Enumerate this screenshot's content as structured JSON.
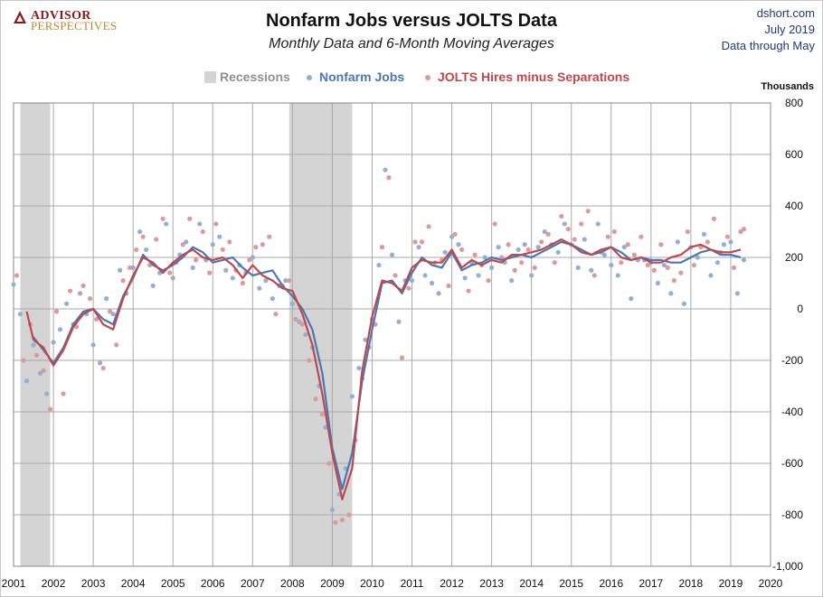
{
  "header": {
    "logo_top": "ADVISOR",
    "logo_bottom": "PERSPECTIVES",
    "title": "Nonfarm Jobs versus JOLTS Data",
    "subtitle": "Monthly Data and 6-Month Moving Averages",
    "source_site": "dshort.com",
    "source_date": "July 2019",
    "source_note": "Data through May"
  },
  "colors": {
    "recession": "#d4d4d4",
    "nonfarm": "#4a78b5",
    "jolts": "#c0474b",
    "grid": "#a9a9a9"
  },
  "chart_data": {
    "type": "line",
    "title": "Nonfarm Jobs versus JOLTS Data",
    "subtitle": "Monthly Data and 6-Month Moving Averages",
    "ylabel": "Thousands",
    "xlim": [
      2001,
      2020
    ],
    "ylim": [
      -1000,
      800
    ],
    "x_ticks": [
      "2001",
      "2002",
      "2003",
      "2004",
      "2005",
      "2006",
      "2007",
      "2008",
      "2009",
      "2010",
      "2011",
      "2012",
      "2013",
      "2014",
      "2015",
      "2016",
      "2017",
      "2018",
      "2019",
      "2020"
    ],
    "y_ticks": [
      "800",
      "600",
      "400",
      "200",
      "0",
      "-200",
      "-400",
      "-600",
      "-800",
      "-1,000"
    ],
    "y_tick_values": [
      800,
      600,
      400,
      200,
      0,
      -200,
      -400,
      -600,
      -800,
      -1000
    ],
    "legend": {
      "position": "top-center",
      "recessions": "Recessions",
      "nonfarm": "Nonfarm Jobs",
      "jolts": "JOLTS Hires minus Separations"
    },
    "recessions": [
      [
        2001.17,
        2001.92
      ],
      [
        2007.92,
        2009.5
      ]
    ],
    "series": [
      {
        "name": "Nonfarm Jobs",
        "style": "6-month moving average",
        "x": [
          2001.5,
          2001.75,
          2002.0,
          2002.25,
          2002.5,
          2002.75,
          2003.0,
          2003.25,
          2003.5,
          2003.75,
          2004.0,
          2004.25,
          2004.5,
          2004.75,
          2005.0,
          2005.25,
          2005.5,
          2005.75,
          2006.0,
          2006.25,
          2006.5,
          2006.75,
          2007.0,
          2007.25,
          2007.5,
          2007.75,
          2008.0,
          2008.25,
          2008.5,
          2008.75,
          2009.0,
          2009.25,
          2009.5,
          2009.75,
          2010.0,
          2010.25,
          2010.5,
          2010.75,
          2011.0,
          2011.25,
          2011.5,
          2011.75,
          2012.0,
          2012.25,
          2012.5,
          2012.75,
          2013.0,
          2013.25,
          2013.5,
          2013.75,
          2014.0,
          2014.25,
          2014.5,
          2014.75,
          2015.0,
          2015.25,
          2015.5,
          2015.75,
          2016.0,
          2016.25,
          2016.5,
          2016.75,
          2017.0,
          2017.25,
          2017.5,
          2017.75,
          2018.0,
          2018.25,
          2018.5,
          2018.75,
          2019.0,
          2019.25
        ],
        "values": [
          -110,
          -160,
          -210,
          -150,
          -60,
          -10,
          0,
          -40,
          -60,
          50,
          120,
          210,
          170,
          150,
          170,
          200,
          240,
          220,
          180,
          190,
          200,
          160,
          130,
          140,
          150,
          90,
          50,
          0,
          -80,
          -250,
          -540,
          -700,
          -560,
          -280,
          -80,
          100,
          110,
          60,
          140,
          200,
          170,
          160,
          220,
          150,
          170,
          180,
          200,
          190,
          200,
          210,
          200,
          220,
          240,
          260,
          250,
          230,
          210,
          220,
          240,
          220,
          190,
          200,
          190,
          190,
          180,
          180,
          200,
          220,
          230,
          210,
          210,
          200
        ]
      },
      {
        "name": "JOLTS Hires minus Separations",
        "style": "6-month moving average",
        "x": [
          2001.33,
          2001.5,
          2001.75,
          2002.0,
          2002.25,
          2002.5,
          2002.75,
          2003.0,
          2003.25,
          2003.5,
          2003.75,
          2004.0,
          2004.25,
          2004.5,
          2004.75,
          2005.0,
          2005.25,
          2005.5,
          2005.75,
          2006.0,
          2006.25,
          2006.5,
          2006.75,
          2007.0,
          2007.25,
          2007.5,
          2007.75,
          2008.0,
          2008.25,
          2008.5,
          2008.75,
          2009.0,
          2009.25,
          2009.5,
          2009.75,
          2010.0,
          2010.25,
          2010.5,
          2010.75,
          2011.0,
          2011.25,
          2011.5,
          2011.75,
          2012.0,
          2012.25,
          2012.5,
          2012.75,
          2013.0,
          2013.25,
          2013.5,
          2013.75,
          2014.0,
          2014.25,
          2014.5,
          2014.75,
          2015.0,
          2015.25,
          2015.5,
          2015.75,
          2016.0,
          2016.25,
          2016.5,
          2016.75,
          2017.0,
          2017.25,
          2017.5,
          2017.75,
          2018.0,
          2018.25,
          2018.5,
          2018.75,
          2019.0,
          2019.25
        ],
        "values": [
          -10,
          -120,
          -150,
          -220,
          -160,
          -70,
          -20,
          0,
          -60,
          -80,
          40,
          130,
          200,
          180,
          140,
          180,
          210,
          230,
          200,
          190,
          200,
          170,
          120,
          170,
          130,
          110,
          80,
          70,
          -20,
          -140,
          -330,
          -560,
          -740,
          -620,
          -240,
          -30,
          110,
          100,
          70,
          160,
          190,
          180,
          180,
          230,
          160,
          190,
          170,
          190,
          180,
          210,
          210,
          220,
          230,
          250,
          270,
          250,
          220,
          210,
          230,
          240,
          200,
          190,
          200,
          180,
          180,
          200,
          210,
          240,
          250,
          230,
          220,
          220,
          230
        ]
      }
    ],
    "scatter": [
      {
        "name": "Nonfarm Jobs",
        "style": "monthly data",
        "x": [
          2001.0,
          2001.17,
          2001.33,
          2001.5,
          2001.67,
          2001.83,
          2002.0,
          2002.17,
          2002.33,
          2002.5,
          2002.67,
          2002.83,
          2003.0,
          2003.17,
          2003.33,
          2003.5,
          2003.67,
          2003.83,
          2004.0,
          2004.17,
          2004.33,
          2004.5,
          2004.67,
          2004.83,
          2005.0,
          2005.17,
          2005.33,
          2005.5,
          2005.67,
          2005.83,
          2006.0,
          2006.17,
          2006.33,
          2006.5,
          2006.67,
          2006.83,
          2007.0,
          2007.17,
          2007.33,
          2007.5,
          2007.67,
          2007.83,
          2008.0,
          2008.17,
          2008.33,
          2008.5,
          2008.67,
          2008.83,
          2009.0,
          2009.17,
          2009.33,
          2009.5,
          2009.67,
          2009.83,
          2010.0,
          2010.17,
          2010.33,
          2010.5,
          2010.67,
          2010.83,
          2011.0,
          2011.17,
          2011.33,
          2011.5,
          2011.67,
          2011.83,
          2012.0,
          2012.17,
          2012.33,
          2012.5,
          2012.67,
          2012.83,
          2013.0,
          2013.17,
          2013.33,
          2013.5,
          2013.67,
          2013.83,
          2014.0,
          2014.17,
          2014.33,
          2014.5,
          2014.67,
          2014.83,
          2015.0,
          2015.17,
          2015.33,
          2015.5,
          2015.67,
          2015.83,
          2016.0,
          2016.17,
          2016.33,
          2016.5,
          2016.67,
          2016.83,
          2017.0,
          2017.17,
          2017.33,
          2017.5,
          2017.67,
          2017.83,
          2018.0,
          2018.17,
          2018.33,
          2018.5,
          2018.67,
          2018.83,
          2019.0,
          2019.17,
          2019.33
        ],
        "values": [
          95,
          -20,
          -280,
          -140,
          -250,
          -330,
          -130,
          -80,
          20,
          -60,
          60,
          -20,
          -140,
          -210,
          40,
          -20,
          150,
          60,
          160,
          300,
          230,
          90,
          140,
          330,
          120,
          210,
          260,
          160,
          330,
          190,
          250,
          280,
          150,
          120,
          170,
          140,
          200,
          80,
          110,
          40,
          90,
          110,
          20,
          -50,
          -100,
          -150,
          -300,
          -460,
          -780,
          -720,
          -620,
          -340,
          -230,
          -120,
          -40,
          170,
          540,
          210,
          -50,
          110,
          110,
          240,
          130,
          100,
          60,
          220,
          280,
          250,
          120,
          180,
          130,
          200,
          160,
          240,
          180,
          110,
          230,
          250,
          130,
          240,
          300,
          250,
          220,
          330,
          250,
          160,
          270,
          150,
          330,
          210,
          170,
          130,
          240,
          40,
          190,
          190,
          180,
          100,
          170,
          60,
          260,
          20,
          240,
          200,
          290,
          130,
          180,
          250,
          260,
          60,
          190
        ]
      },
      {
        "name": "JOLTS Hires minus Separations",
        "style": "monthly data",
        "x": [
          2001.08,
          2001.25,
          2001.42,
          2001.58,
          2001.75,
          2001.92,
          2002.08,
          2002.25,
          2002.42,
          2002.58,
          2002.75,
          2002.92,
          2003.08,
          2003.25,
          2003.42,
          2003.58,
          2003.75,
          2003.92,
          2004.08,
          2004.25,
          2004.42,
          2004.58,
          2004.75,
          2004.92,
          2005.08,
          2005.25,
          2005.42,
          2005.58,
          2005.75,
          2005.92,
          2006.08,
          2006.25,
          2006.42,
          2006.58,
          2006.75,
          2006.92,
          2007.08,
          2007.25,
          2007.42,
          2007.58,
          2007.75,
          2007.92,
          2008.08,
          2008.25,
          2008.42,
          2008.58,
          2008.75,
          2008.92,
          2009.08,
          2009.25,
          2009.42,
          2009.58,
          2009.75,
          2009.92,
          2010.08,
          2010.25,
          2010.42,
          2010.58,
          2010.75,
          2010.92,
          2011.08,
          2011.25,
          2011.42,
          2011.58,
          2011.75,
          2011.92,
          2012.08,
          2012.25,
          2012.42,
          2012.58,
          2012.75,
          2012.92,
          2013.08,
          2013.25,
          2013.42,
          2013.58,
          2013.75,
          2013.92,
          2014.08,
          2014.25,
          2014.42,
          2014.58,
          2014.75,
          2014.92,
          2015.08,
          2015.25,
          2015.42,
          2015.58,
          2015.75,
          2015.92,
          2016.08,
          2016.25,
          2016.42,
          2016.58,
          2016.75,
          2016.92,
          2017.08,
          2017.25,
          2017.42,
          2017.58,
          2017.75,
          2017.92,
          2018.08,
          2018.25,
          2018.42,
          2018.58,
          2018.75,
          2018.92,
          2019.08,
          2019.25,
          2019.33
        ],
        "values": [
          130,
          -200,
          -60,
          -180,
          -240,
          -390,
          -10,
          -330,
          70,
          -70,
          90,
          40,
          -40,
          -230,
          -10,
          -140,
          110,
          160,
          230,
          280,
          170,
          270,
          350,
          140,
          180,
          250,
          350,
          190,
          300,
          140,
          330,
          230,
          260,
          150,
          100,
          190,
          240,
          250,
          280,
          -20,
          90,
          110,
          -40,
          -60,
          -200,
          -350,
          -410,
          -600,
          -830,
          -820,
          -800,
          -510,
          -270,
          -150,
          -60,
          240,
          510,
          130,
          -190,
          80,
          260,
          260,
          320,
          180,
          190,
          90,
          290,
          230,
          70,
          210,
          170,
          110,
          330,
          200,
          250,
          150,
          180,
          230,
          160,
          260,
          290,
          180,
          360,
          310,
          270,
          330,
          380,
          130,
          220,
          280,
          300,
          180,
          250,
          210,
          280,
          170,
          150,
          250,
          160,
          110,
          140,
          300,
          170,
          240,
          260,
          350,
          220,
          280,
          160,
          300,
          310
        ]
      }
    ]
  }
}
